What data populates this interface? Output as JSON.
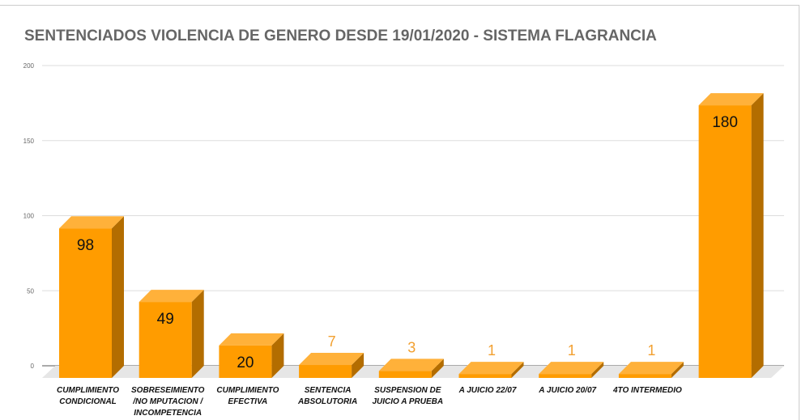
{
  "chart_data": {
    "type": "bar",
    "title": "SENTENCIADOS VIOLENCIA DE GENERO DESDE 19/01/2020 - SISTEMA FLAGRANCIA",
    "categories": [
      "CUMPLIMIENTO|CONDICIONAL",
      "SOBRESEIMIENTO|/NO MPUTACION /|INCOMPETENCIA",
      "CUMPLIMIENTO|EFECTIVA",
      "SENTENCIA|ABSOLUTORIA",
      "SUSPENSION DE|JUICIO A PRUEBA",
      "A JUICIO 22/07",
      "A JUICIO 20/07",
      "4TO INTERMEDIO",
      ""
    ],
    "values": [
      98,
      49,
      20,
      7,
      3,
      1,
      1,
      1,
      180
    ],
    "ylim": [
      0,
      200
    ],
    "yticks": [
      0,
      50,
      100,
      150,
      200
    ],
    "grid": true,
    "colors": {
      "front": "#FF9C00",
      "top": "#FFB13A",
      "side": "#B36D00",
      "floor": "#E6E6E6",
      "labelInside": "#111111",
      "labelOutside": "#F2A030"
    }
  }
}
